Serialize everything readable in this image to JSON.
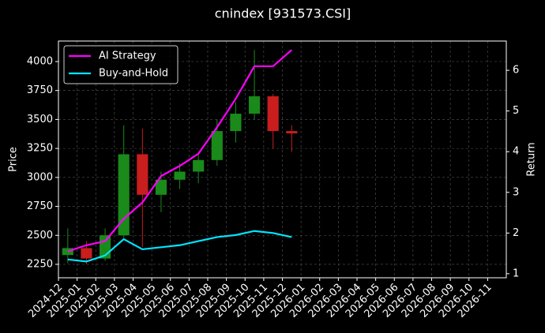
{
  "chart_data": {
    "type": "candlestick",
    "title": "cnindex [931573.CSI]",
    "y_label": "Price",
    "y2_label": "Return",
    "x": [
      "2024-12",
      "2025-01",
      "2025-02",
      "2025-03",
      "2025-04",
      "2025-05",
      "2025-06",
      "2025-07",
      "2025-08",
      "2025-09",
      "2025-10",
      "2025-11",
      "2025-12"
    ],
    "open": [
      2330,
      2390,
      2300,
      2500,
      3200,
      2850,
      2980,
      3050,
      3150,
      3400,
      3550,
      3700,
      3400
    ],
    "high": [
      2560,
      2450,
      2560,
      3450,
      3420,
      3050,
      3120,
      3200,
      3500,
      3650,
      4100,
      3720,
      3450
    ],
    "low": [
      2260,
      2250,
      2280,
      2480,
      2400,
      2700,
      2900,
      2950,
      3100,
      3300,
      3500,
      3250,
      3220
    ],
    "close": [
      2390,
      2300,
      2500,
      3200,
      2850,
      2980,
      3050,
      3150,
      3400,
      3550,
      3700,
      3400,
      3380
    ],
    "up_color": "#1a8a1a",
    "down_color": "#c81e1e",
    "series": [
      {
        "name": "AI Strategy",
        "color": "#ff00ff",
        "axis": "y2",
        "values": [
          1.55,
          1.7,
          1.8,
          2.35,
          2.75,
          3.4,
          3.65,
          3.95,
          4.6,
          5.3,
          6.1,
          6.1,
          6.5
        ]
      },
      {
        "name": "Buy-and-Hold",
        "color": "#00e5ff",
        "axis": "y2",
        "values": [
          1.35,
          1.3,
          1.45,
          1.85,
          1.6,
          1.65,
          1.7,
          1.8,
          1.9,
          1.95,
          2.05,
          2.0,
          1.9
        ]
      }
    ],
    "xlim": [
      "2024-12",
      "2026-12"
    ],
    "xticks": [
      "2024-12",
      "2025-01",
      "2025-02",
      "2025-03",
      "2025-04",
      "2025-05",
      "2025-06",
      "2025-07",
      "2025-08",
      "2025-09",
      "2025-10",
      "2025-11",
      "2025-12",
      "2026-01",
      "2026-02",
      "2026-03",
      "2026-04",
      "2026-05",
      "2026-06",
      "2026-07",
      "2026-08",
      "2026-09",
      "2026-10",
      "2026-11"
    ],
    "ylim": [
      2134,
      4177
    ],
    "yticks": [
      2250,
      2500,
      2750,
      3000,
      3250,
      3500,
      3750,
      4000
    ],
    "y2lim": [
      0.9,
      6.72
    ],
    "y2ticks": [
      1,
      2,
      3,
      4,
      5,
      6
    ],
    "grid": true,
    "legend": "upper left"
  }
}
